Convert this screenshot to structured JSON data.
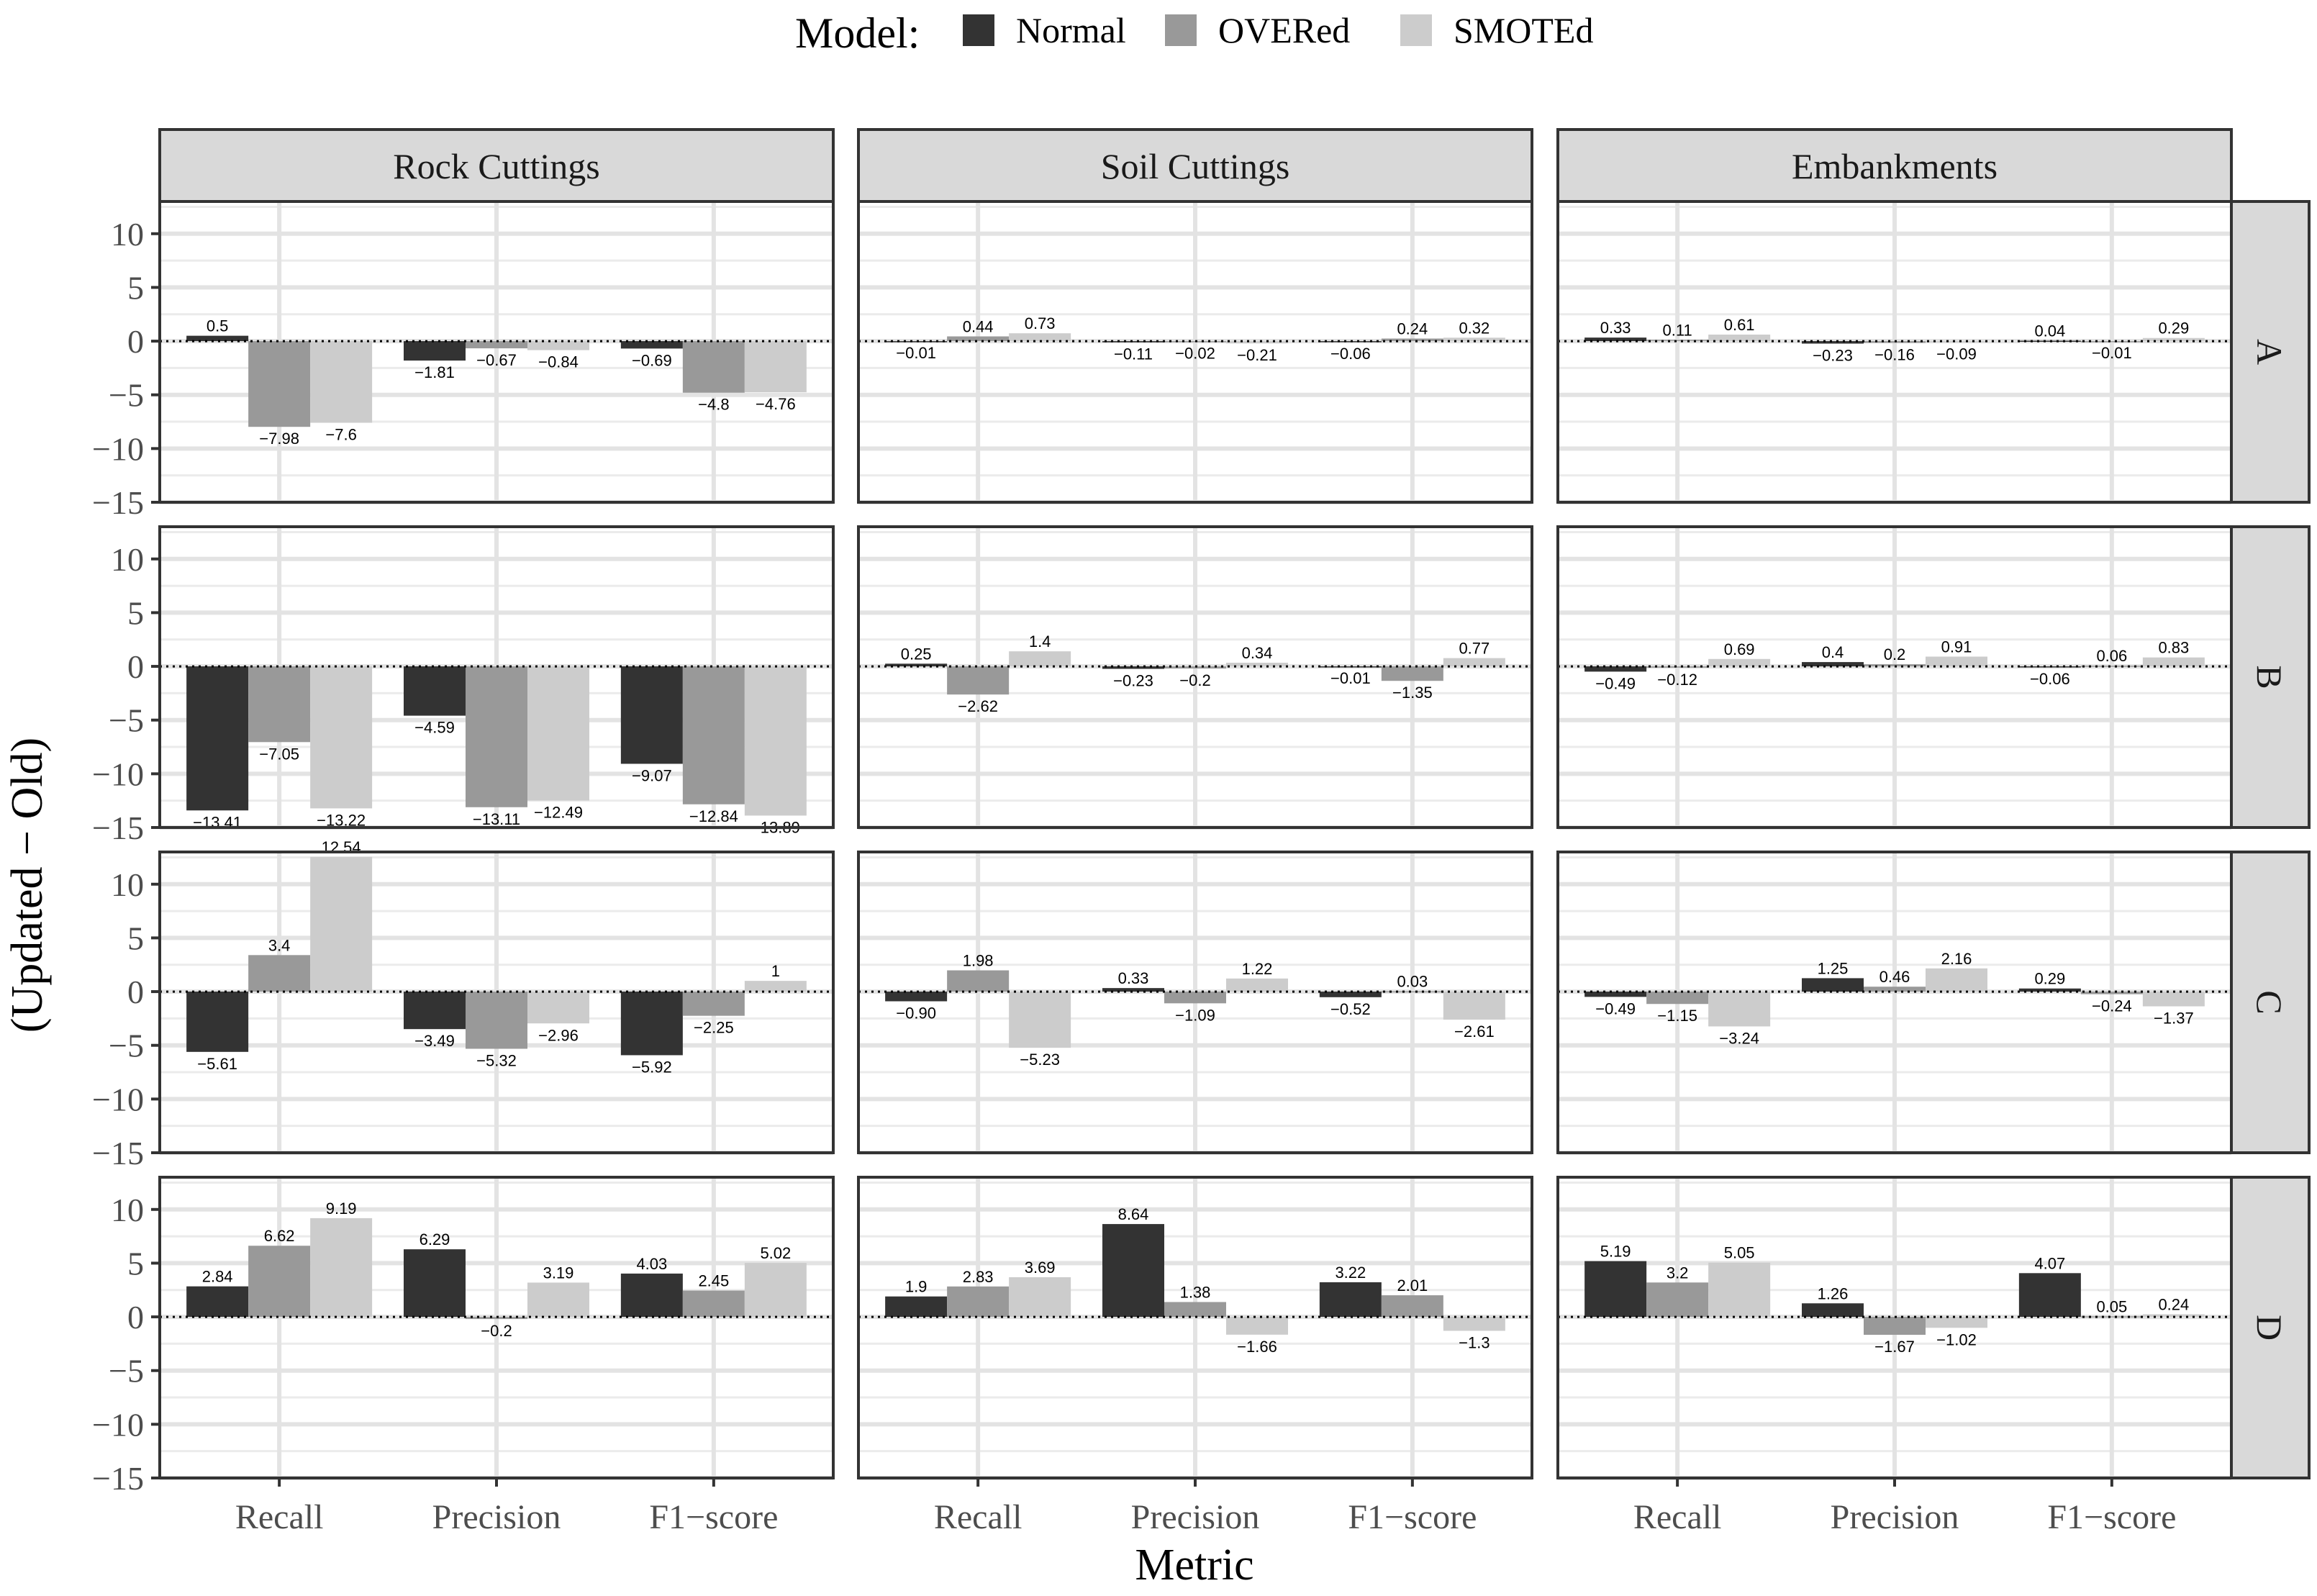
{
  "chart_data": {
    "type": "bar",
    "title": "",
    "xlabel": "Metric",
    "ylabel": "(Updated − Old)",
    "ylim": [
      -15,
      13
    ],
    "yticks": [
      "−15",
      "−10",
      "−5",
      "0",
      "5",
      "10"
    ],
    "ytick_values": [
      -15,
      -10,
      -5,
      0,
      5,
      10
    ],
    "categories": [
      "Recall",
      "Precision",
      "F1−score"
    ],
    "legend": {
      "title": "Model:",
      "position": "top",
      "entries": [
        "Normal",
        "OVERed",
        "SMOTEd"
      ]
    },
    "series_colors": [
      "#333333",
      "#999999",
      "#cccccc"
    ],
    "panel_strip_color": "#d9d9d9",
    "columns": [
      "Rock Cuttings",
      "Soil Cuttings",
      "Embankments"
    ],
    "rows": [
      "A",
      "B",
      "C",
      "D"
    ],
    "panels": [
      [
        {
          "values": [
            [
              0.5,
              -1.81,
              -0.69
            ],
            [
              -7.98,
              -0.67,
              -4.8
            ],
            [
              -7.6,
              -0.84,
              -4.76
            ]
          ],
          "labels": [
            [
              "0.5",
              "−1.81",
              "−0.69"
            ],
            [
              "−7.98",
              "−0.67",
              "−4.8"
            ],
            [
              "−7.6",
              "−0.84",
              "−4.76"
            ]
          ]
        },
        {
          "values": [
            [
              -0.01,
              -0.11,
              -0.06
            ],
            [
              0.44,
              -0.02,
              0.24
            ],
            [
              0.73,
              -0.21,
              0.32
            ]
          ],
          "labels": [
            [
              "−0.01",
              "−0.11",
              "−0.06"
            ],
            [
              "0.44",
              "−0.02",
              "0.24"
            ],
            [
              "0.73",
              "−0.21",
              "0.32"
            ]
          ]
        },
        {
          "values": [
            [
              0.33,
              -0.23,
              0.04
            ],
            [
              0.11,
              -0.16,
              -0.01
            ],
            [
              0.61,
              -0.09,
              0.29
            ]
          ],
          "labels": [
            [
              "0.33",
              "−0.23",
              "0.04"
            ],
            [
              "0.11",
              "−0.16",
              "−0.01"
            ],
            [
              "0.61",
              "−0.09",
              "0.29"
            ]
          ]
        }
      ],
      [
        {
          "values": [
            [
              -13.41,
              -4.59,
              -9.07
            ],
            [
              -7.05,
              -13.11,
              -12.84
            ],
            [
              -13.22,
              -12.49,
              -13.89
            ]
          ],
          "labels": [
            [
              "−13.41",
              "−4.59",
              "−9.07"
            ],
            [
              "−7.05",
              "−13.11",
              "−12.84"
            ],
            [
              "−13.22",
              "−12.49",
              "−13.89"
            ]
          ]
        },
        {
          "values": [
            [
              0.25,
              -0.23,
              -0.01
            ],
            [
              -2.62,
              -0.2,
              -1.35
            ],
            [
              1.4,
              0.34,
              0.77
            ]
          ],
          "labels": [
            [
              "0.25",
              "−0.23",
              "−0.01"
            ],
            [
              "−2.62",
              "−0.2",
              "−1.35"
            ],
            [
              "1.4",
              "0.34",
              "0.77"
            ]
          ]
        },
        {
          "values": [
            [
              -0.49,
              0.4,
              -0.06
            ],
            [
              -0.12,
              0.2,
              0.06
            ],
            [
              0.69,
              0.91,
              0.83
            ]
          ],
          "labels": [
            [
              "−0.49",
              "0.4",
              "−0.06"
            ],
            [
              "−0.12",
              "0.2",
              "0.06"
            ],
            [
              "0.69",
              "0.91",
              "0.83"
            ]
          ]
        }
      ],
      [
        {
          "values": [
            [
              -5.61,
              -3.49,
              -5.92
            ],
            [
              3.4,
              -5.32,
              -2.25
            ],
            [
              12.54,
              -2.96,
              1
            ]
          ],
          "labels": [
            [
              "−5.61",
              "−3.49",
              "−5.92"
            ],
            [
              "3.4",
              "−5.32",
              "−2.25"
            ],
            [
              "12.54",
              "−2.96",
              "1"
            ]
          ]
        },
        {
          "values": [
            [
              -0.9,
              0.33,
              -0.52
            ],
            [
              1.98,
              -1.09,
              0.03
            ],
            [
              -5.23,
              1.22,
              -2.61
            ]
          ],
          "labels": [
            [
              "−0.90",
              "0.33",
              "−0.52"
            ],
            [
              "1.98",
              "−1.09",
              "0.03"
            ],
            [
              "−5.23",
              "1.22",
              "−2.61"
            ]
          ]
        },
        {
          "values": [
            [
              -0.49,
              1.25,
              0.29
            ],
            [
              -1.15,
              0.46,
              -0.24
            ],
            [
              -3.24,
              2.16,
              -1.37
            ]
          ],
          "labels": [
            [
              "−0.49",
              "1.25",
              "0.29"
            ],
            [
              "−1.15",
              "0.46",
              "−0.24"
            ],
            [
              "−3.24",
              "2.16",
              "−1.37"
            ]
          ]
        }
      ],
      [
        {
          "values": [
            [
              2.84,
              6.29,
              4.03
            ],
            [
              6.62,
              -0.2,
              2.45
            ],
            [
              9.19,
              3.19,
              5.02
            ]
          ],
          "labels": [
            [
              "2.84",
              "6.29",
              "4.03"
            ],
            [
              "6.62",
              "−0.2",
              "2.45"
            ],
            [
              "9.19",
              "3.19",
              "5.02"
            ]
          ]
        },
        {
          "values": [
            [
              1.9,
              8.64,
              3.22
            ],
            [
              2.83,
              1.38,
              2.01
            ],
            [
              3.69,
              -1.66,
              -1.3
            ]
          ],
          "labels": [
            [
              "1.9",
              "8.64",
              "3.22"
            ],
            [
              "2.83",
              "1.38",
              "2.01"
            ],
            [
              "3.69",
              "−1.66",
              "−1.3"
            ]
          ]
        },
        {
          "values": [
            [
              5.19,
              1.26,
              4.07
            ],
            [
              3.2,
              -1.67,
              0.05
            ],
            [
              5.05,
              -1.02,
              0.24
            ]
          ],
          "labels": [
            [
              "5.19",
              "1.26",
              "4.07"
            ],
            [
              "3.2",
              "−1.67",
              "0.05"
            ],
            [
              "5.05",
              "−1.02",
              "0.24"
            ]
          ]
        }
      ]
    ]
  }
}
